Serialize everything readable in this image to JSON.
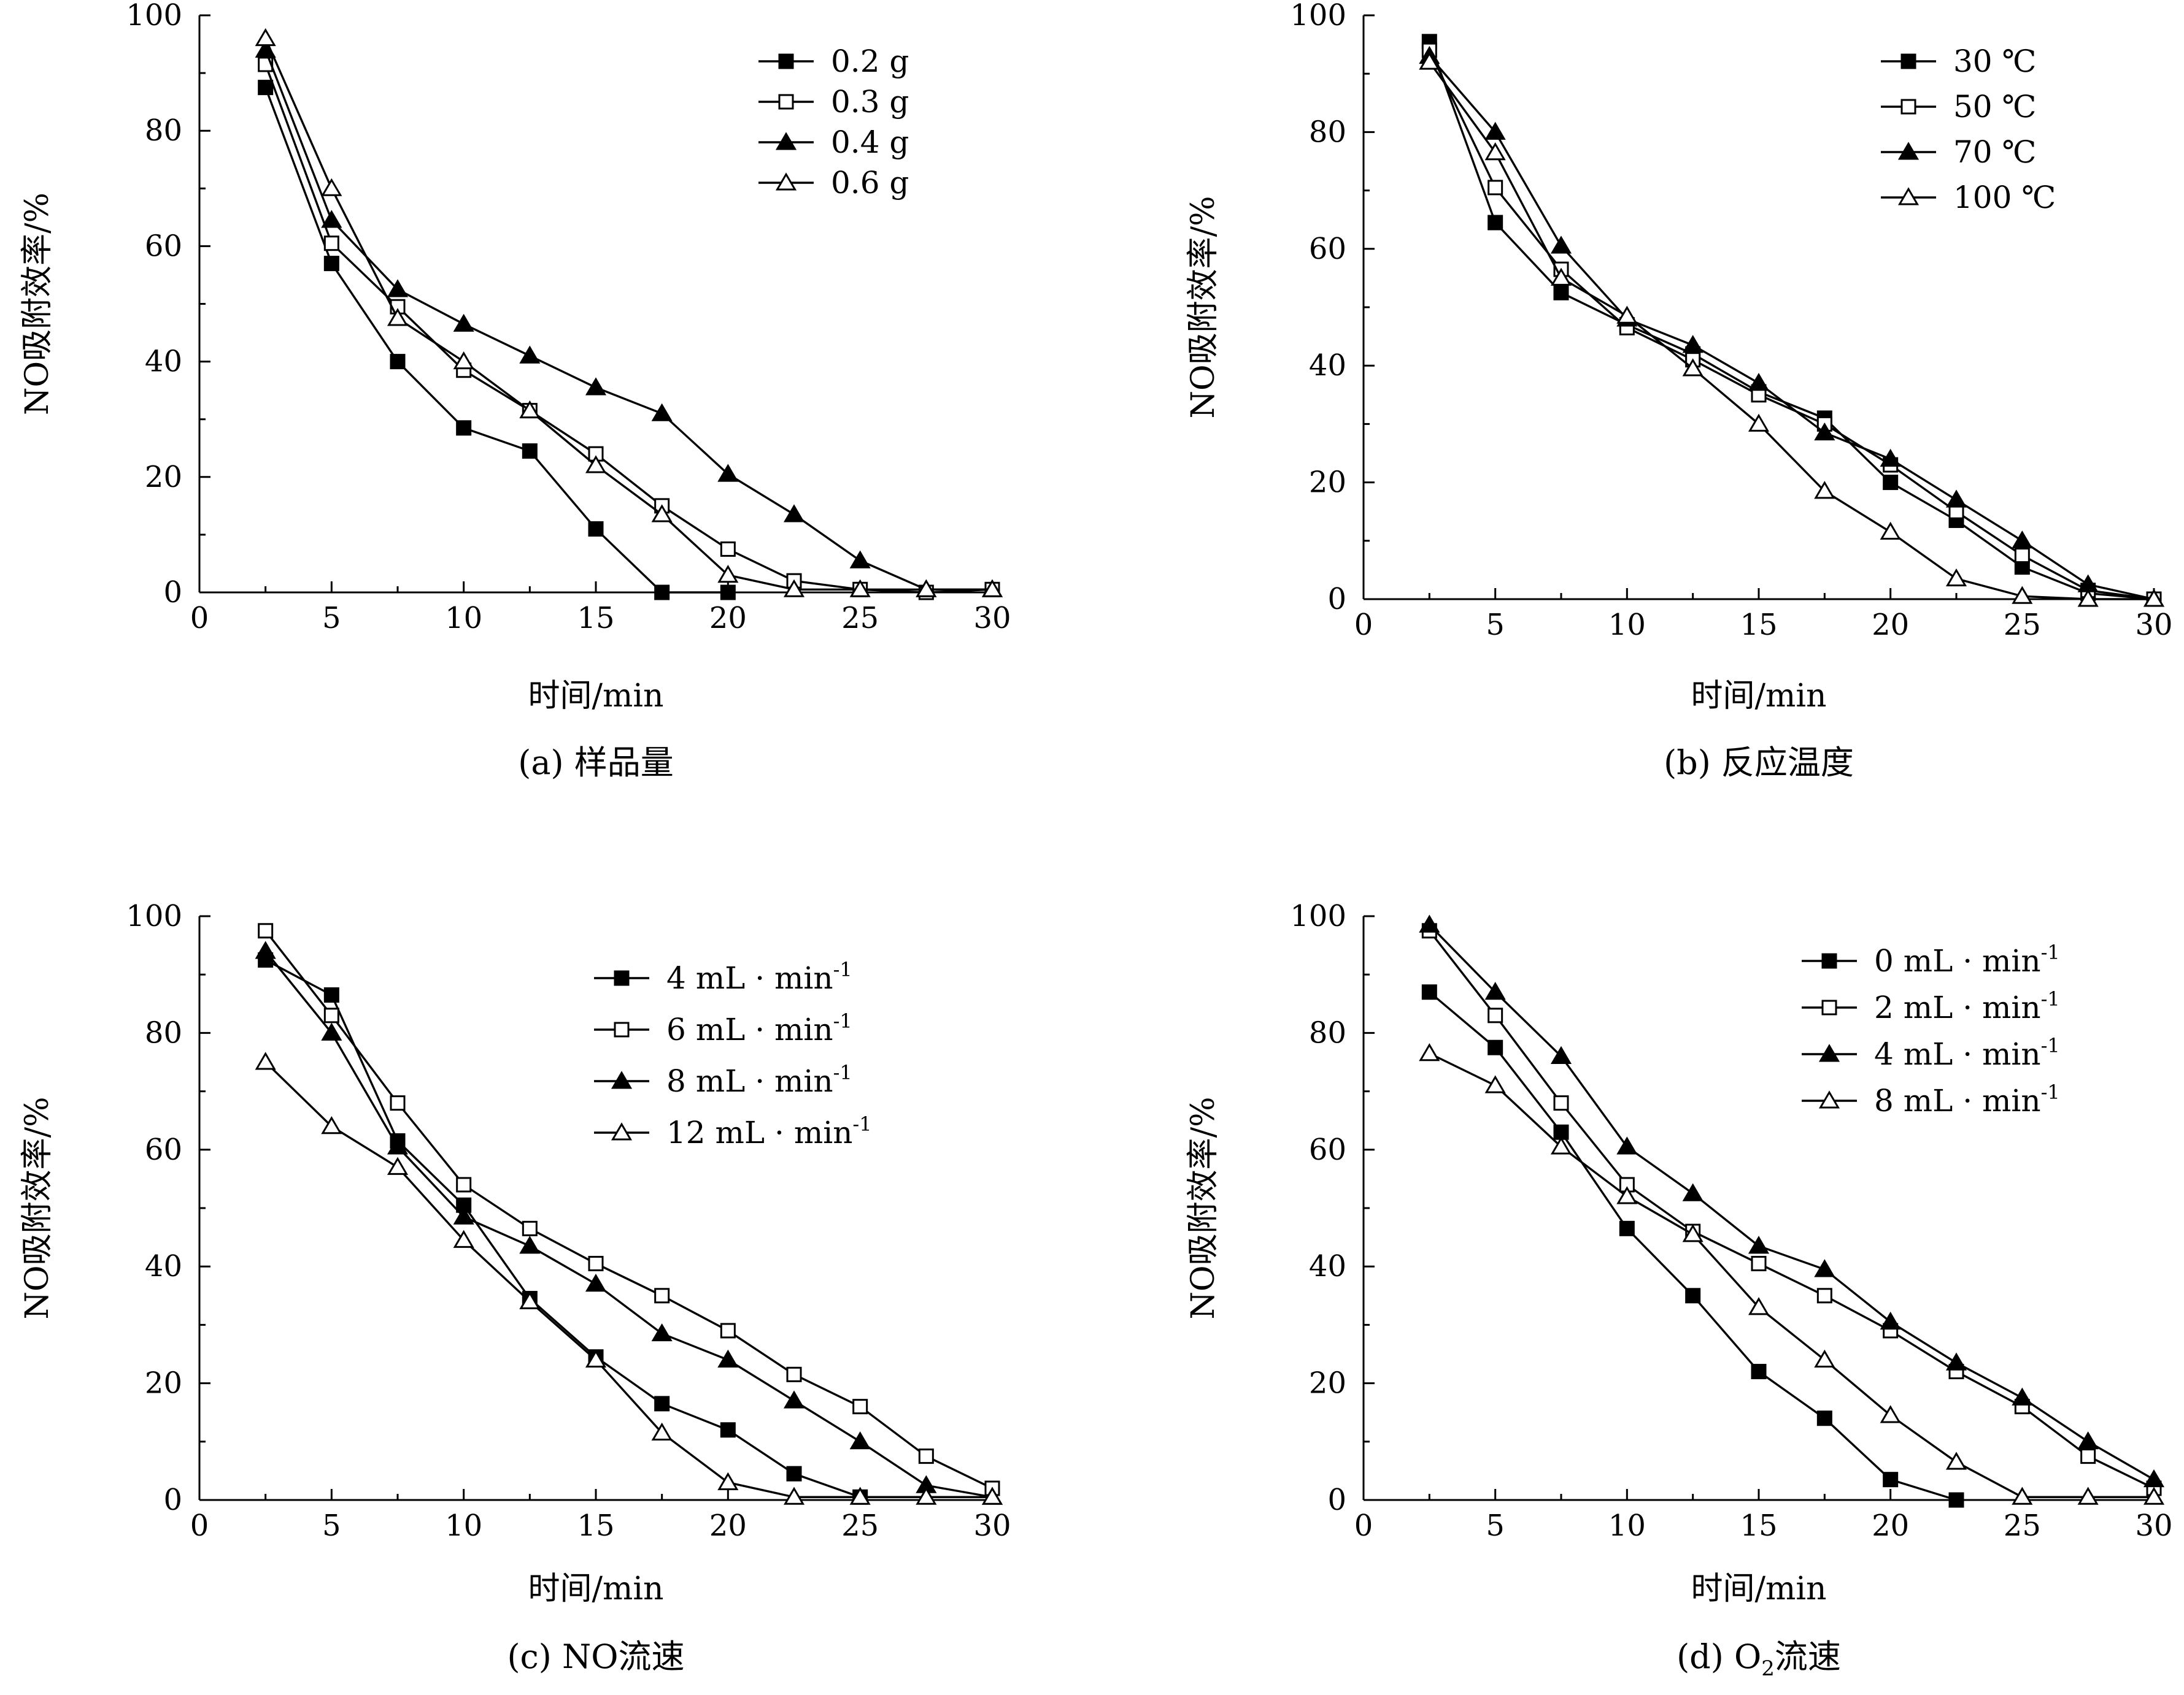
{
  "chart_data": [
    {
      "type": "line",
      "caption": "(a) 样品量",
      "xlabel": "时间/min",
      "ylabel": "NO吸附效率/%",
      "xlim": [
        0,
        30
      ],
      "ylim": [
        0,
        100
      ],
      "xticks": [
        "0",
        "5",
        "10",
        "15",
        "20",
        "25",
        "30"
      ],
      "yticks": [
        "0",
        "20",
        "40",
        "60",
        "80",
        "100"
      ],
      "legend_position": "top-right",
      "x": [
        2.5,
        5,
        7.5,
        10,
        12.5,
        15,
        17.5,
        20,
        22.5,
        25,
        27.5,
        30
      ],
      "series": [
        {
          "name": "0.2 g",
          "marker": "filled-square",
          "values": [
            87.5,
            57,
            40,
            28.5,
            24.5,
            11,
            0,
            0,
            null,
            null,
            null,
            null
          ]
        },
        {
          "name": "0.3 g",
          "marker": "open-square",
          "values": [
            91.5,
            60.5,
            49.5,
            38.5,
            31.5,
            24,
            15,
            7.5,
            2,
            0.5,
            0,
            0.5
          ]
        },
        {
          "name": "0.4 g",
          "marker": "filled-triangle",
          "values": [
            94,
            64.5,
            52.5,
            46.5,
            41,
            35.5,
            31,
            20.5,
            13.5,
            5.5,
            0.5,
            0.5
          ]
        },
        {
          "name": "0.6 g",
          "marker": "open-triangle",
          "values": [
            96,
            70,
            47.5,
            40,
            31.5,
            22,
            13.5,
            3,
            0.5,
            0.5,
            0.5,
            0.5
          ]
        }
      ]
    },
    {
      "type": "line",
      "caption": "(b) 反应温度",
      "xlabel": "时间/min",
      "ylabel": "NO吸附效率/%",
      "xlim": [
        0,
        30
      ],
      "ylim": [
        0,
        100
      ],
      "xticks": [
        "0",
        "5",
        "10",
        "15",
        "20",
        "25",
        "30"
      ],
      "yticks": [
        "0",
        "20",
        "40",
        "60",
        "80",
        "100"
      ],
      "legend_position": "top-right",
      "x": [
        2.5,
        5,
        7.5,
        10,
        12.5,
        15,
        17.5,
        20,
        22.5,
        25,
        27.5,
        30
      ],
      "series": [
        {
          "name": "30 ℃",
          "marker": "filled-square",
          "values": [
            95.5,
            64.5,
            52.5,
            47,
            42,
            35.5,
            31,
            20,
            13.5,
            5.5,
            1,
            0
          ]
        },
        {
          "name": "50 ℃",
          "marker": "open-square",
          "values": [
            94,
            70.5,
            56.5,
            46.5,
            41,
            35,
            30,
            23,
            15,
            7.5,
            1.5,
            0
          ]
        },
        {
          "name": "70 ℃",
          "marker": "filled-triangle",
          "values": [
            93,
            80,
            60.5,
            48,
            43.5,
            37,
            28.5,
            24,
            17,
            10,
            2.5,
            0
          ]
        },
        {
          "name": "100 ℃",
          "marker": "open-triangle",
          "values": [
            92,
            76.5,
            55,
            48.5,
            39.5,
            30,
            18.5,
            11.5,
            3.5,
            0.5,
            0,
            0
          ]
        }
      ]
    },
    {
      "type": "line",
      "caption": "(c) NO流速",
      "xlabel": "时间/min",
      "ylabel": "NO吸附效率/%",
      "xlim": [
        0,
        30
      ],
      "ylim": [
        0,
        100
      ],
      "xticks": [
        "0",
        "5",
        "10",
        "15",
        "20",
        "25",
        "30"
      ],
      "yticks": [
        "0",
        "20",
        "40",
        "60",
        "80",
        "100"
      ],
      "legend_position": "top-right",
      "x": [
        2.5,
        5,
        7.5,
        10,
        12.5,
        15,
        17.5,
        20,
        22.5,
        25,
        27.5,
        30
      ],
      "series": [
        {
          "name": "4 mL · min",
          "name_superscript": "-1",
          "marker": "filled-square",
          "values": [
            92.5,
            86.5,
            61.5,
            50.5,
            34.5,
            24.5,
            16.5,
            12,
            4.5,
            0.5,
            null,
            null
          ]
        },
        {
          "name": "6 mL · min",
          "name_superscript": "-1",
          "marker": "open-square",
          "values": [
            97.5,
            83,
            68,
            54,
            46.5,
            40.5,
            35,
            29,
            21.5,
            16,
            7.5,
            2
          ]
        },
        {
          "name": "8 mL · min",
          "name_superscript": "-1",
          "marker": "filled-triangle",
          "values": [
            94,
            80,
            60.5,
            48.5,
            43.5,
            37,
            28.5,
            24,
            17,
            10,
            2.5,
            0.5
          ]
        },
        {
          "name": "12 mL · min",
          "name_superscript": "-1",
          "marker": "open-triangle",
          "values": [
            75,
            64,
            57,
            44.5,
            34,
            24,
            11.5,
            3,
            0.5,
            0.5,
            0.5,
            0.5
          ]
        }
      ]
    },
    {
      "type": "line",
      "caption": "(d) O",
      "caption_subscript": "2",
      "caption_suffix": "流速",
      "xlabel": "时间/min",
      "ylabel": "NO吸附效率/%",
      "xlim": [
        0,
        30
      ],
      "ylim": [
        0,
        100
      ],
      "xticks": [
        "0",
        "5",
        "10",
        "15",
        "20",
        "25",
        "30"
      ],
      "yticks": [
        "0",
        "20",
        "40",
        "60",
        "80",
        "100"
      ],
      "legend_position": "top-right",
      "x": [
        2.5,
        5,
        7.5,
        10,
        12.5,
        15,
        17.5,
        20,
        22.5,
        25,
        27.5,
        30
      ],
      "series": [
        {
          "name": "0 mL · min",
          "name_superscript": "-1",
          "marker": "filled-square",
          "values": [
            87,
            77.5,
            63,
            46.5,
            35,
            22,
            14,
            3.5,
            0,
            null,
            null,
            null
          ]
        },
        {
          "name": "2 mL · min",
          "name_superscript": "-1",
          "marker": "open-square",
          "values": [
            97.5,
            83,
            68,
            54,
            46,
            40.5,
            35,
            29,
            22,
            16,
            7.5,
            2
          ]
        },
        {
          "name": "4 mL · min",
          "name_superscript": "-1",
          "marker": "filled-triangle",
          "values": [
            98.5,
            87,
            76,
            60.5,
            52.5,
            43.5,
            39.5,
            30.5,
            23.5,
            17.5,
            10,
            3.5
          ]
        },
        {
          "name": "8 mL · min",
          "name_superscript": "-1",
          "marker": "open-triangle",
          "values": [
            76.5,
            71,
            60.5,
            52,
            45.5,
            33,
            24,
            14.5,
            6.5,
            0.5,
            0.5,
            0.5
          ]
        }
      ]
    }
  ]
}
